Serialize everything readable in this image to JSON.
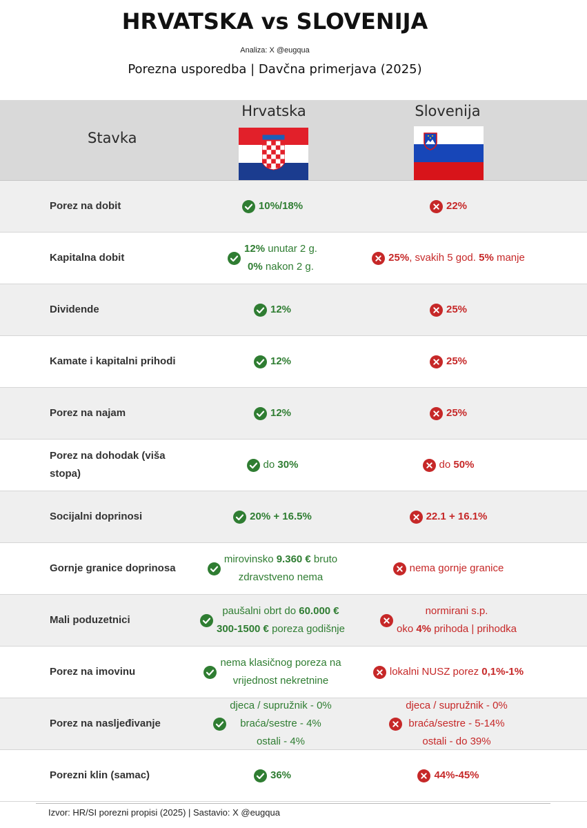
{
  "header": {
    "title": "HRVATSKA vs SLOVENIJA",
    "author": "Analiza: X @eugqua",
    "subtitle": "Porezna usporedba | Davčna primerjava (2025)"
  },
  "columns": {
    "item": "Stavka",
    "hr": "Hrvatska",
    "si": "Slovenija"
  },
  "colors": {
    "positive": "#2f7d32",
    "negative": "#c62828",
    "header_bg": "#d9d9d9"
  },
  "icons": {
    "hr": "check-circle-icon",
    "si": "x-circle-icon"
  },
  "rows": [
    {
      "label": "Porez na dobit",
      "hr": [
        "<b>10%/18%</b>"
      ],
      "si": [
        "<b>22%</b>"
      ]
    },
    {
      "label": "Kapitalna dobit",
      "hr": [
        "<b>12%</b> unutar 2 g.",
        "<b>0%</b> nakon 2 g."
      ],
      "si": [
        "<b>25%</b>, svakih 5 god. <b>5%</b> manje"
      ]
    },
    {
      "label": "Dividende",
      "hr": [
        "<b>12%</b>"
      ],
      "si": [
        "<b>25%</b>"
      ]
    },
    {
      "label": "Kamate i kapitalni prihodi",
      "hr": [
        "<b>12%</b>"
      ],
      "si": [
        "<b>25%</b>"
      ]
    },
    {
      "label": "Porez na najam",
      "hr": [
        "<b>12%</b>"
      ],
      "si": [
        "<b>25%</b>"
      ]
    },
    {
      "label": "Porez na dohodak (viša stopa)",
      "hr": [
        "do <b>30%</b>"
      ],
      "si": [
        "do <b>50%</b>"
      ]
    },
    {
      "label": "Socijalni doprinosi",
      "hr": [
        "<b>20% + 16.5%</b>"
      ],
      "si": [
        "<b>22.1 + 16.1%</b>"
      ]
    },
    {
      "label": "Gornje granice doprinosa",
      "hr": [
        "mirovinsko <b>9.360 €</b> bruto",
        "zdravstveno nema"
      ],
      "si": [
        "nema gornje granice"
      ]
    },
    {
      "label": "Mali poduzetnici",
      "hr": [
        "paušalni obrt do <b>60.000 €</b>",
        "<b>300-1500 €</b> poreza godišnje"
      ],
      "si": [
        "normirani s.p.",
        "oko <b>4%</b> prihoda | prihodka"
      ]
    },
    {
      "label": "Porez na imovinu",
      "hr": [
        "nema klasičnog poreza na",
        "vrijednost nekretnine"
      ],
      "si": [
        "lokalni NUSZ porez <b>0,1%-1%</b>"
      ]
    },
    {
      "label": "Porez na nasljeđivanje",
      "hr": [
        "djeca / supružnik -  0%",
        "braća/sestre - 4%",
        "ostali - 4%"
      ],
      "si": [
        "djeca / supružnik -  0%",
        "braća/sestre - 5-14%",
        "ostali - do 39%"
      ]
    },
    {
      "label": "Porezni klin (samac)",
      "hr": [
        "<b>36%</b>"
      ],
      "si": [
        "<b>44%-45%</b>"
      ]
    }
  ],
  "footer": "Izvor: HR/SI porezni propisi (2025) | Sastavio: X @eugqua",
  "watermark": "@eugqua"
}
